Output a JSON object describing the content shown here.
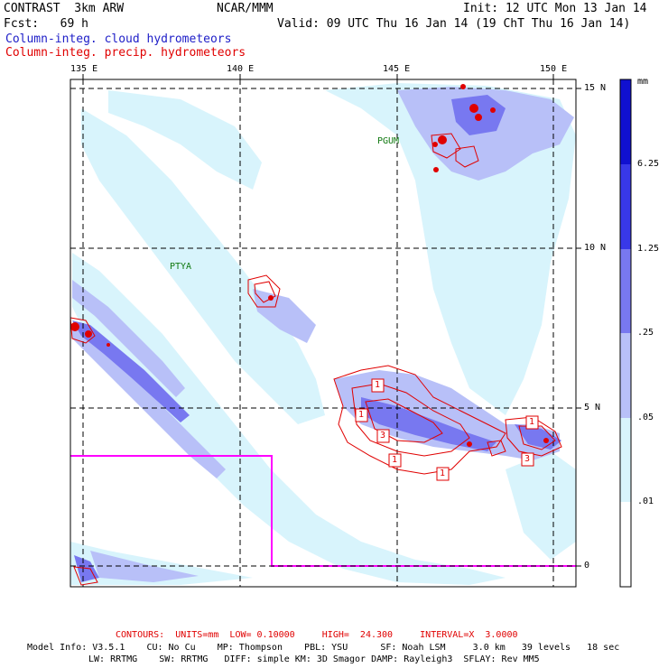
{
  "header": {
    "model": "CONTRAST  3km ARW",
    "center": "NCAR/MMM",
    "init": "Init: 12 UTC Mon 13 Jan 14",
    "fcst": "Fcst:   69 h",
    "valid": "Valid: 09 UTC Thu 16 Jan 14 (19 ChT Thu 16 Jan 14)"
  },
  "legend": {
    "cloud": "Column-integ. cloud hydrometeors",
    "precip": "Column-integ. precip. hydrometeors"
  },
  "axes": {
    "lon_labels": [
      "135 E",
      "140 E",
      "145 E",
      "150 E"
    ],
    "lat_labels": [
      "15 N",
      "10 N",
      "5 N",
      "0"
    ]
  },
  "stations": [
    "PGUM",
    "PTYA"
  ],
  "contour_labels": [
    "1",
    "1",
    "3",
    "1",
    "1",
    "1",
    "3"
  ],
  "colorbar": {
    "unit": "mm",
    "levels": [
      "6.25",
      "1.25",
      ".25",
      ".05",
      ".01"
    ],
    "colors": [
      "#1010d0",
      "#3838e8",
      "#7878f0",
      "#b8c0f8",
      "#d8f4fc",
      "#ffffff"
    ]
  },
  "footer": {
    "contours": "CONTOURS:  UNITS=mm  LOW= 0.10000     HIGH=  24.300     INTERVAL=X  3.0000",
    "model_info": "Model Info: V3.5.1    CU: No Cu    MP: Thompson    PBL: YSU      SF: Noah LSM     3.0 km   39 levels   18 sec",
    "model_info2": "LW: RRTMG    SW: RRTMG   DIFF: simple KM: 3D Smagor DAMP: Rayleigh3  SFLAY: Rev MM5"
  }
}
